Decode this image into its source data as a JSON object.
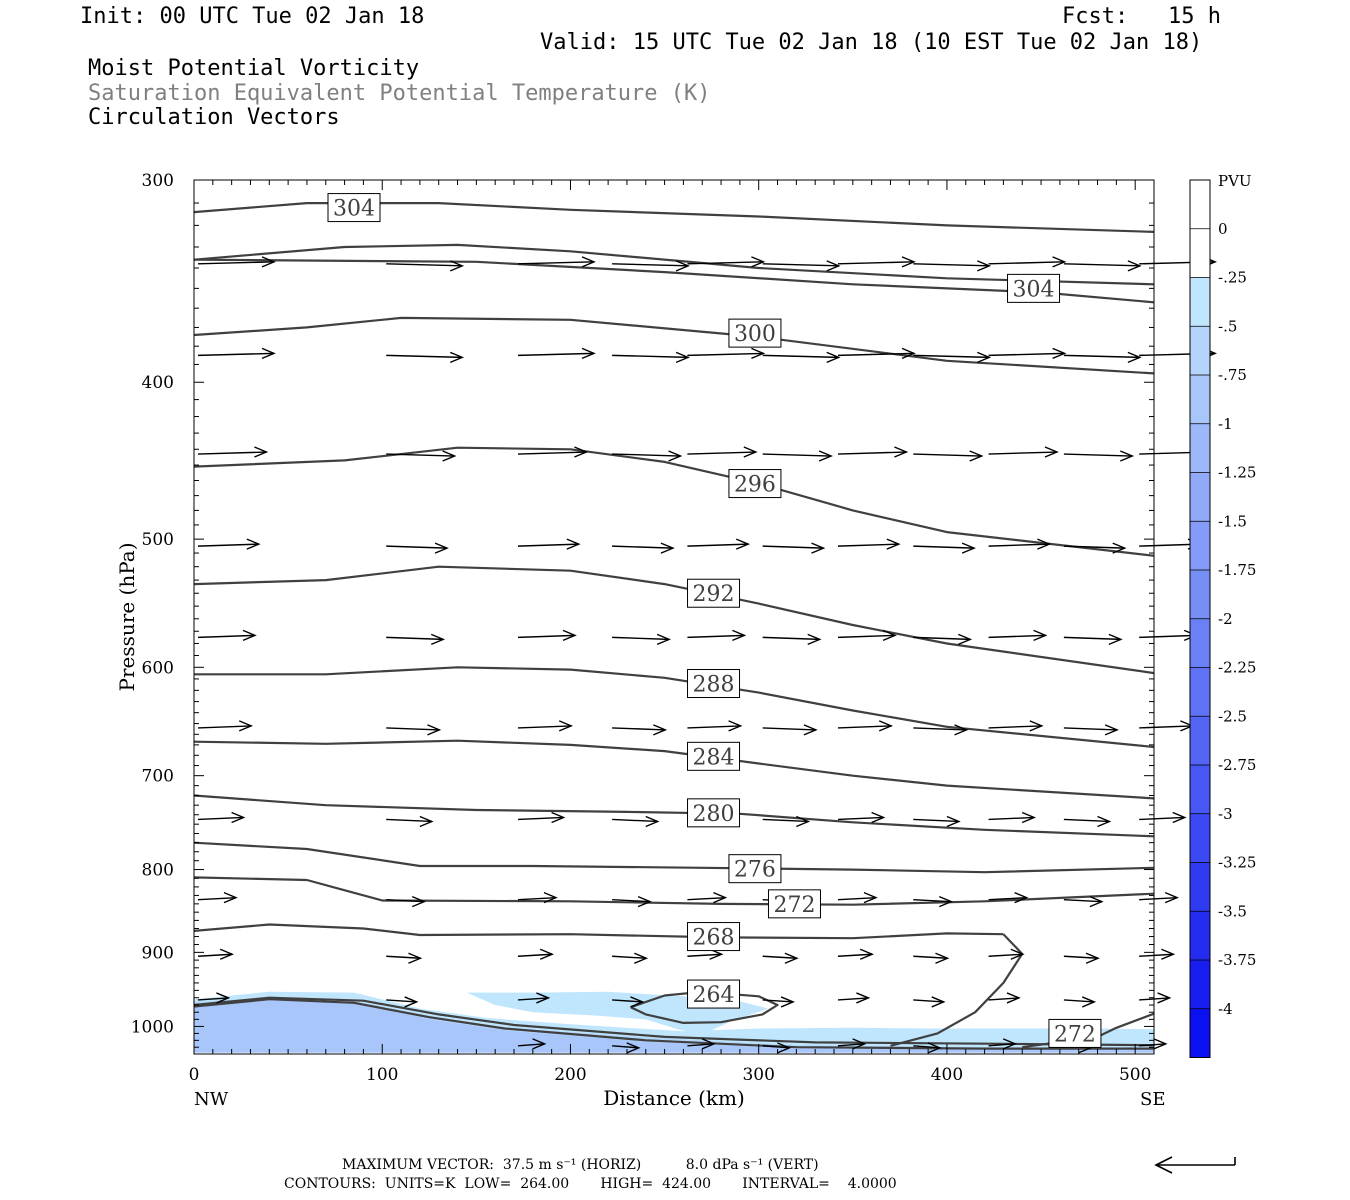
{
  "header": {
    "init": "Init: 00 UTC Tue 02 Jan 18",
    "fcst": "Fcst:   15 h",
    "valid": "Valid: 15 UTC Tue 02 Jan 18 (10 EST Tue 02 Jan 18)",
    "field1": "Moist Potential Vorticity",
    "field2": "Saturation Equivalent Potential Temperature (K)",
    "field3": "Circulation Vectors"
  },
  "footer": {
    "max_vector": "MAXIMUM VECTOR:  37.5 m s⁻¹ (HORIZ)          8.0 dPa s⁻¹ (VERT)",
    "contours": "CONTOURS:  UNITS=K  LOW=  264.00       HIGH=  424.00       INTERVAL=    4.0000"
  },
  "colors": {
    "contour": "#404040",
    "pv_light": "#bde4fb",
    "pv_mid": "#a8c8f8",
    "pv_deep": "#9aa6f5"
  },
  "chart_data": {
    "type": "heatmap",
    "xlabel": "Distance (km)",
    "ylabel": "Pressure (hPa)",
    "xlim": [
      0,
      510
    ],
    "ylim": [
      1040,
      300
    ],
    "y_scale": "log",
    "x_ticks": [
      0,
      100,
      200,
      300,
      400,
      500
    ],
    "y_ticks": [
      300,
      400,
      500,
      600,
      700,
      800,
      900,
      1000
    ],
    "x_end_labels": {
      "left": "NW",
      "right": "SE"
    },
    "colorbar": {
      "title": "PVU",
      "labels": [
        "0",
        "-.25",
        "-.5",
        "-.75",
        "-1",
        "-1.25",
        "-1.5",
        "-1.75",
        "-2",
        "-2.25",
        "-2.5",
        "-2.75",
        "-3",
        "-3.25",
        "-3.5",
        "-3.75",
        "-4"
      ],
      "colors": [
        "#ffffff",
        "#ffffff",
        "#bfe6fc",
        "#b4d4fb",
        "#a8c6fa",
        "#9cb8f9",
        "#90aaf8",
        "#849cf8",
        "#788ef7",
        "#6c80f6",
        "#6072f5",
        "#5464f4",
        "#4856f3",
        "#3c48f2",
        "#303af1",
        "#242cf0",
        "#181ef0",
        "#0a10f0"
      ]
    },
    "contours": [
      {
        "label": "304",
        "points": [
          [
            0,
            314
          ],
          [
            60,
            310
          ],
          [
            130,
            310
          ],
          [
            200,
            313
          ],
          [
            300,
            316
          ],
          [
            400,
            320
          ],
          [
            510,
            323
          ]
        ]
      },
      {
        "label": "",
        "points": [
          [
            0,
            336
          ],
          [
            80,
            330
          ],
          [
            140,
            329
          ],
          [
            200,
            332
          ],
          [
            300,
            340
          ],
          [
            400,
            345
          ],
          [
            510,
            348
          ]
        ]
      },
      {
        "label": "304",
        "points": [
          [
            0,
            336
          ],
          [
            150,
            337
          ],
          [
            250,
            342
          ],
          [
            350,
            348
          ],
          [
            450,
            352
          ],
          [
            510,
            357
          ]
        ]
      },
      {
        "label": "300",
        "points": [
          [
            0,
            374
          ],
          [
            60,
            370
          ],
          [
            110,
            365
          ],
          [
            200,
            366
          ],
          [
            300,
            375
          ],
          [
            400,
            388
          ],
          [
            510,
            395
          ]
        ]
      },
      {
        "label": "296",
        "points": [
          [
            0,
            451
          ],
          [
            80,
            447
          ],
          [
            140,
            439
          ],
          [
            200,
            440
          ],
          [
            250,
            448
          ],
          [
            300,
            462
          ],
          [
            350,
            480
          ],
          [
            400,
            495
          ],
          [
            510,
            512
          ]
        ]
      },
      {
        "label": "292",
        "points": [
          [
            0,
            533
          ],
          [
            70,
            530
          ],
          [
            130,
            520
          ],
          [
            200,
            523
          ],
          [
            250,
            533
          ],
          [
            300,
            548
          ],
          [
            350,
            565
          ],
          [
            400,
            580
          ],
          [
            510,
            605
          ]
        ]
      },
      {
        "label": "288",
        "points": [
          [
            0,
            606
          ],
          [
            70,
            606
          ],
          [
            140,
            600
          ],
          [
            200,
            602
          ],
          [
            250,
            609
          ],
          [
            300,
            622
          ],
          [
            350,
            638
          ],
          [
            400,
            653
          ],
          [
            510,
            672
          ]
        ]
      },
      {
        "label": "284",
        "points": [
          [
            0,
            667
          ],
          [
            70,
            669
          ],
          [
            140,
            666
          ],
          [
            200,
            670
          ],
          [
            250,
            676
          ],
          [
            300,
            688
          ],
          [
            350,
            700
          ],
          [
            400,
            710
          ],
          [
            510,
            723
          ]
        ]
      },
      {
        "label": "280",
        "points": [
          [
            0,
            720
          ],
          [
            70,
            730
          ],
          [
            150,
            735
          ],
          [
            230,
            737
          ],
          [
            290,
            739
          ],
          [
            350,
            748
          ],
          [
            420,
            756
          ],
          [
            510,
            763
          ]
        ]
      },
      {
        "label": "276",
        "points": [
          [
            0,
            770
          ],
          [
            60,
            777
          ],
          [
            120,
            796
          ],
          [
            180,
            796
          ],
          [
            270,
            798
          ],
          [
            350,
            800
          ],
          [
            420,
            803
          ],
          [
            510,
            798
          ]
        ]
      },
      {
        "label": "272",
        "points": [
          [
            0,
            809
          ],
          [
            60,
            812
          ],
          [
            100,
            836
          ],
          [
            200,
            837
          ],
          [
            280,
            840
          ],
          [
            350,
            841
          ],
          [
            420,
            837
          ],
          [
            510,
            828
          ]
        ]
      },
      {
        "label": "268",
        "points": [
          [
            0,
            873
          ],
          [
            40,
            865
          ],
          [
            90,
            870
          ],
          [
            120,
            878
          ],
          [
            200,
            877
          ],
          [
            280,
            881
          ],
          [
            350,
            882
          ],
          [
            400,
            876
          ],
          [
            430,
            877
          ]
        ]
      },
      {
        "label": "",
        "points": [
          [
            430,
            877
          ],
          [
            440,
            902
          ],
          [
            430,
            940
          ],
          [
            415,
            980
          ],
          [
            395,
            1010
          ],
          [
            370,
            1028
          ]
        ]
      },
      {
        "label": "264",
        "points": [
          [
            232,
            973
          ],
          [
            250,
            957
          ],
          [
            270,
            952
          ],
          [
            300,
            958
          ],
          [
            310,
            970
          ],
          [
            302,
            983
          ],
          [
            280,
            994
          ],
          [
            260,
            995
          ],
          [
            240,
            983
          ],
          [
            232,
            973
          ]
        ]
      },
      {
        "label": "272",
        "points": [
          [
            440,
            1030
          ],
          [
            480,
            1015
          ],
          [
            490,
            1002
          ],
          [
            510,
            982
          ]
        ]
      },
      {
        "label": "",
        "points": [
          [
            0,
            970
          ],
          [
            40,
            960
          ],
          [
            90,
            964
          ],
          [
            130,
            983
          ],
          [
            170,
            998
          ],
          [
            250,
            1015
          ],
          [
            330,
            1023
          ],
          [
            430,
            1025
          ],
          [
            510,
            1027
          ]
        ]
      },
      {
        "label": "",
        "points": [
          [
            0,
            972
          ],
          [
            40,
            962
          ],
          [
            85,
            967
          ],
          [
            125,
            987
          ],
          [
            165,
            1003
          ],
          [
            240,
            1020
          ],
          [
            320,
            1030
          ],
          [
            420,
            1032
          ],
          [
            510,
            1032
          ]
        ]
      }
    ],
    "pv_regions": [
      {
        "level": "-.25",
        "points": [
          [
            0,
            962
          ],
          [
            40,
            952
          ],
          [
            85,
            953
          ],
          [
            120,
            975
          ],
          [
            155,
            988
          ],
          [
            200,
            997
          ],
          [
            260,
            1007
          ],
          [
            300,
            1003
          ],
          [
            350,
            1002
          ],
          [
            390,
            1003
          ],
          [
            440,
            1003
          ],
          [
            480,
            1003
          ],
          [
            510,
            1004
          ],
          [
            510,
            1038
          ],
          [
            0,
            1038
          ]
        ]
      },
      {
        "level": "-.25",
        "points": [
          [
            145,
            953
          ],
          [
            180,
            953
          ],
          [
            220,
            952
          ],
          [
            260,
            958
          ],
          [
            290,
            965
          ],
          [
            305,
            975
          ],
          [
            285,
            993
          ],
          [
            270,
            1012
          ],
          [
            258,
            1005
          ],
          [
            240,
            990
          ],
          [
            215,
            985
          ],
          [
            180,
            980
          ],
          [
            160,
            970
          ]
        ]
      },
      {
        "level": "-.5",
        "points": [
          [
            0,
            966
          ],
          [
            40,
            960
          ],
          [
            88,
            966
          ],
          [
            125,
            985
          ],
          [
            165,
            1001
          ],
          [
            240,
            1016
          ],
          [
            320,
            1027
          ],
          [
            420,
            1030
          ],
          [
            510,
            1030
          ],
          [
            510,
            1038
          ],
          [
            0,
            1038
          ]
        ]
      },
      {
        "level": "-.75",
        "points": [
          [
            0,
            968
          ],
          [
            40,
            962
          ],
          [
            88,
            969
          ],
          [
            125,
            990
          ],
          [
            165,
            1006
          ],
          [
            240,
            1022
          ],
          [
            320,
            1032
          ],
          [
            420,
            1034
          ],
          [
            510,
            1035
          ],
          [
            510,
            1038
          ],
          [
            0,
            1038
          ]
        ]
      }
    ],
    "vectors": [
      {
        "p": 338,
        "x": [
          0,
          100,
          170,
          220,
          260,
          300,
          340,
          380,
          420,
          460,
          500
        ],
        "u": 40
      },
      {
        "p": 385,
        "x": [
          0,
          100,
          170,
          220,
          260,
          300,
          340,
          380,
          420,
          460,
          500
        ],
        "u": 40
      },
      {
        "p": 443,
        "x": [
          0,
          100,
          170,
          220,
          260,
          300,
          340,
          380,
          420,
          460,
          500
        ],
        "u": 36
      },
      {
        "p": 505,
        "x": [
          0,
          100,
          170,
          220,
          260,
          300,
          340,
          380,
          420,
          460,
          500
        ],
        "u": 32
      },
      {
        "p": 575,
        "x": [
          0,
          100,
          170,
          220,
          260,
          300,
          340,
          380,
          420,
          460,
          500
        ],
        "u": 30
      },
      {
        "p": 654,
        "x": [
          0,
          100,
          170,
          220,
          260,
          300,
          340,
          380,
          420,
          460,
          500
        ],
        "u": 28
      },
      {
        "p": 745,
        "x": [
          0,
          100,
          170,
          220,
          260,
          300,
          340,
          380,
          420,
          460,
          500
        ],
        "u": 24
      },
      {
        "p": 835,
        "x": [
          0,
          100,
          170,
          220,
          260,
          300,
          340,
          380,
          420,
          460,
          500
        ],
        "u": 20
      },
      {
        "p": 905,
        "x": [
          0,
          100,
          170,
          220,
          260,
          300,
          340,
          380,
          420,
          460,
          500
        ],
        "u": 18
      },
      {
        "p": 963,
        "x": [
          0,
          100,
          170,
          220,
          260,
          300,
          340,
          380,
          420,
          460,
          500
        ],
        "u": 16
      },
      {
        "p": 1028,
        "x": [
          170,
          220,
          260,
          300,
          340,
          380,
          420,
          460,
          500
        ],
        "u": 14
      }
    ]
  }
}
